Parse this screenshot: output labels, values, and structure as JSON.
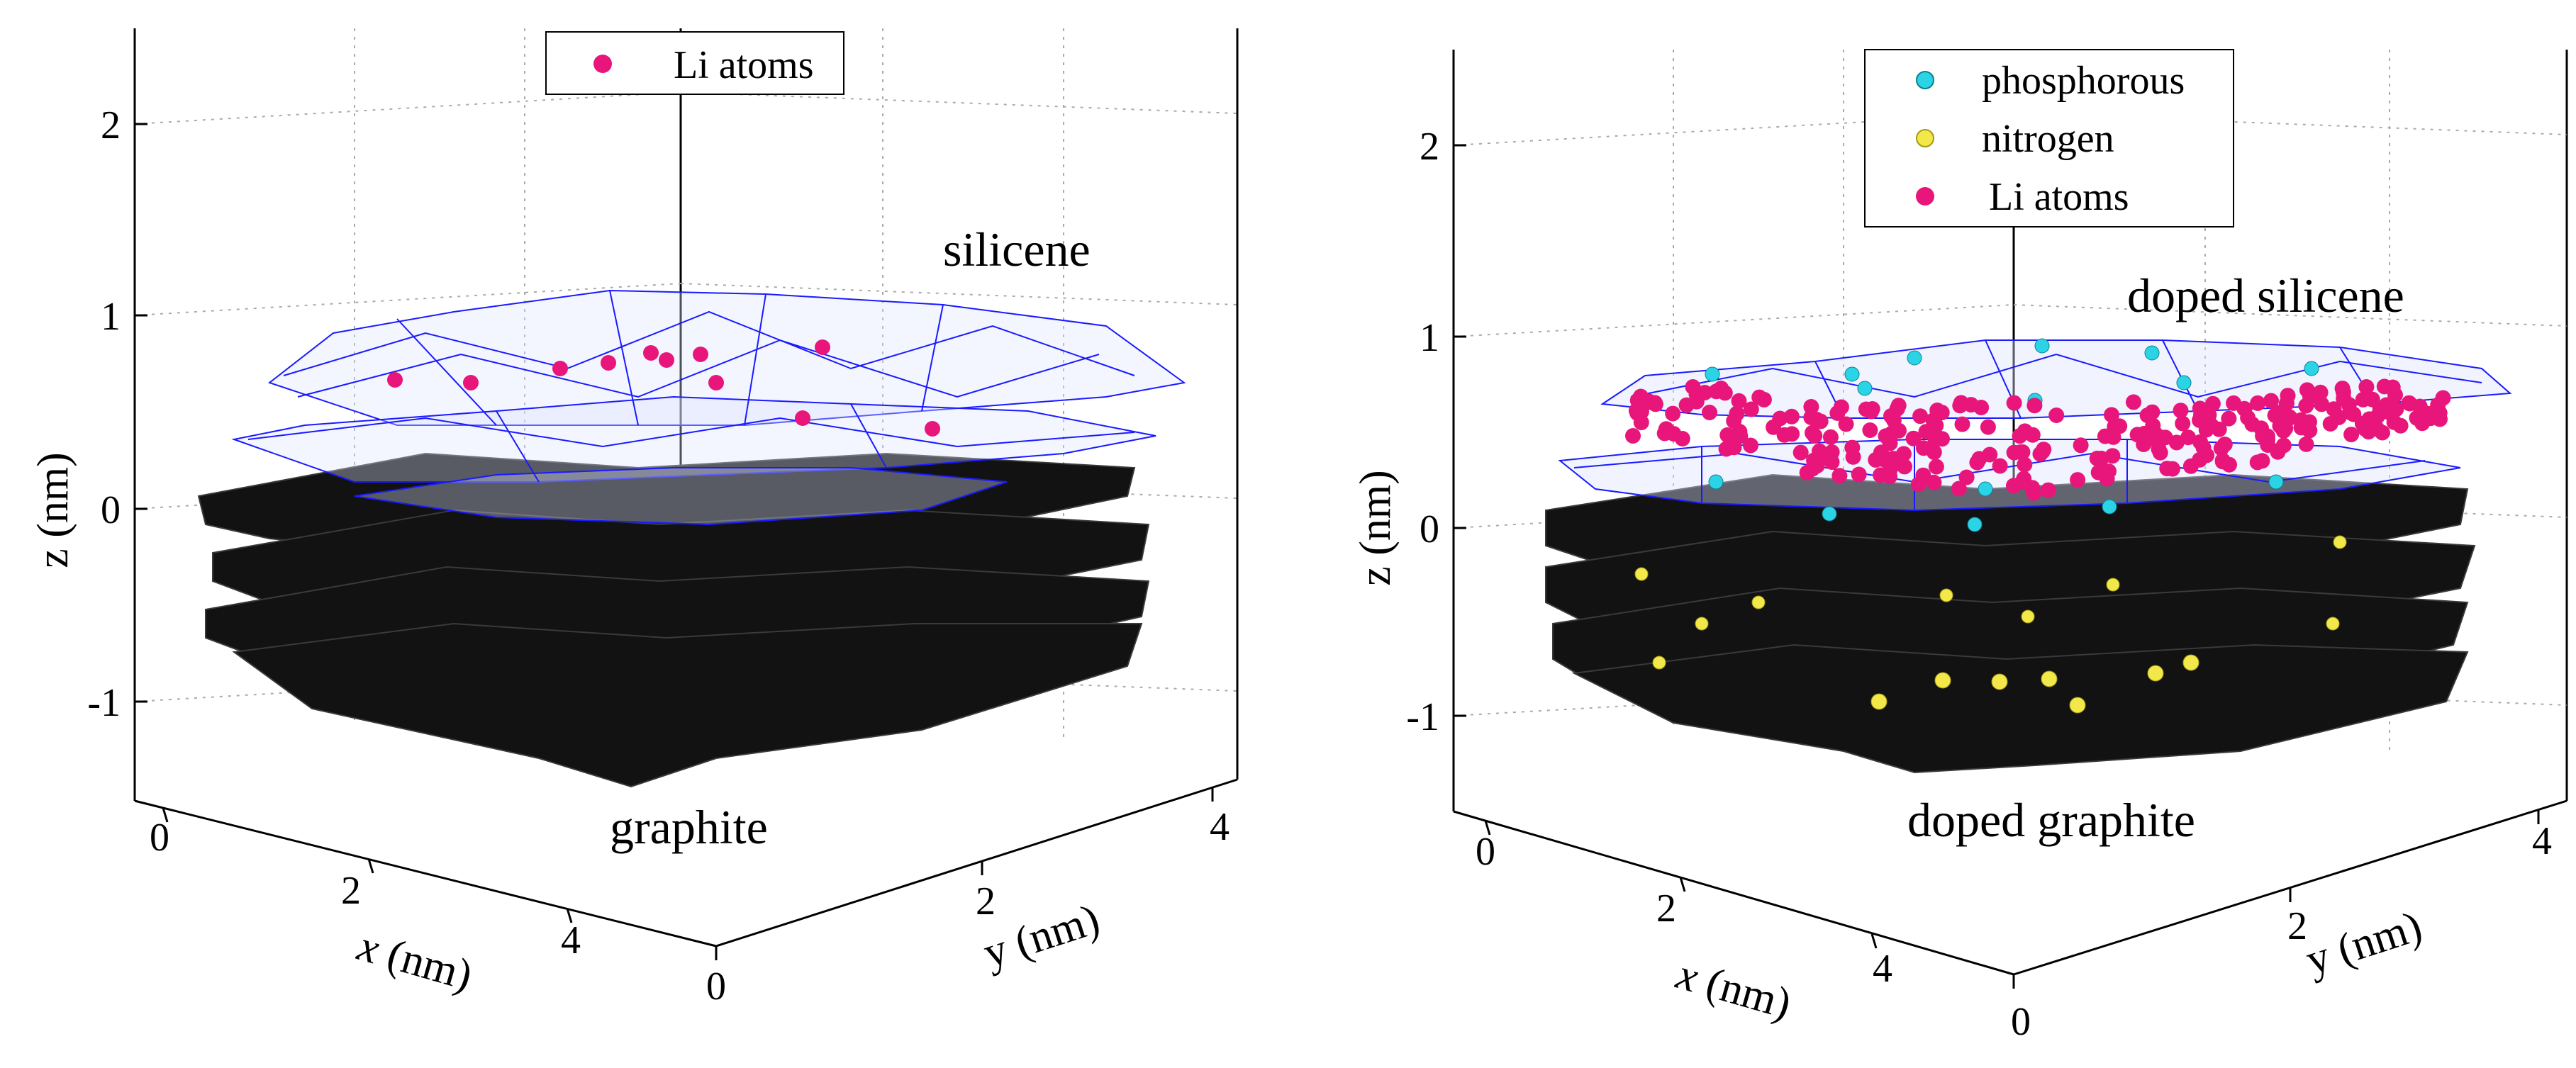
{
  "chart_data": [
    {
      "type": "scatter",
      "panel": "left",
      "legend": {
        "entries": [
          {
            "label": "Li atoms",
            "color": "#e8167a"
          }
        ],
        "placement": "top-center"
      },
      "annotations": {
        "upper_layer": "silicene",
        "lower_layer": "graphite"
      },
      "axes": {
        "x": {
          "label_var": "x",
          "label_unit": " (nm)",
          "ticks": [
            "0",
            "2",
            "4"
          ],
          "range": [
            0,
            5
          ]
        },
        "y": {
          "label_var": "y",
          "label_unit": " (nm)",
          "ticks": [
            "0",
            "2",
            "4"
          ],
          "range": [
            0,
            4
          ]
        },
        "z": {
          "label_var": "z",
          "label_unit": " (nm)",
          "ticks": [
            "2",
            "1",
            "0",
            "-1"
          ],
          "range": [
            -1.5,
            2.5
          ]
        }
      },
      "grid": true,
      "colors": {
        "silicene_mesh": "#1a1aff",
        "graphite": "#111111",
        "li": "#e8167a"
      }
    },
    {
      "type": "scatter",
      "panel": "right",
      "legend": {
        "entries": [
          {
            "label": "phosphorous",
            "color": "#2ad4e6"
          },
          {
            "label": "nitrogen",
            "color": "#f2e84a"
          },
          {
            "label": "Li atoms",
            "color": "#e8167a"
          }
        ],
        "placement": "top-center"
      },
      "annotations": {
        "upper_layer": "doped silicene",
        "lower_layer": "doped graphite"
      },
      "axes": {
        "x": {
          "label_var": "x",
          "label_unit": " (nm)",
          "ticks": [
            "0",
            "2",
            "4"
          ],
          "range": [
            0,
            5
          ]
        },
        "y": {
          "label_var": "y",
          "label_unit": " (nm)",
          "ticks": [
            "0",
            "2",
            "4"
          ],
          "range": [
            0,
            4
          ]
        },
        "z": {
          "label_var": "z",
          "label_unit": " (nm)",
          "ticks": [
            "2",
            "1",
            "0",
            "-1"
          ],
          "range": [
            -1.5,
            2.5
          ]
        }
      },
      "grid": true,
      "colors": {
        "silicene_mesh": "#1a1aff",
        "graphite": "#111111",
        "li": "#e8167a",
        "p": "#2ad4e6",
        "n": "#f2e84a"
      }
    }
  ]
}
